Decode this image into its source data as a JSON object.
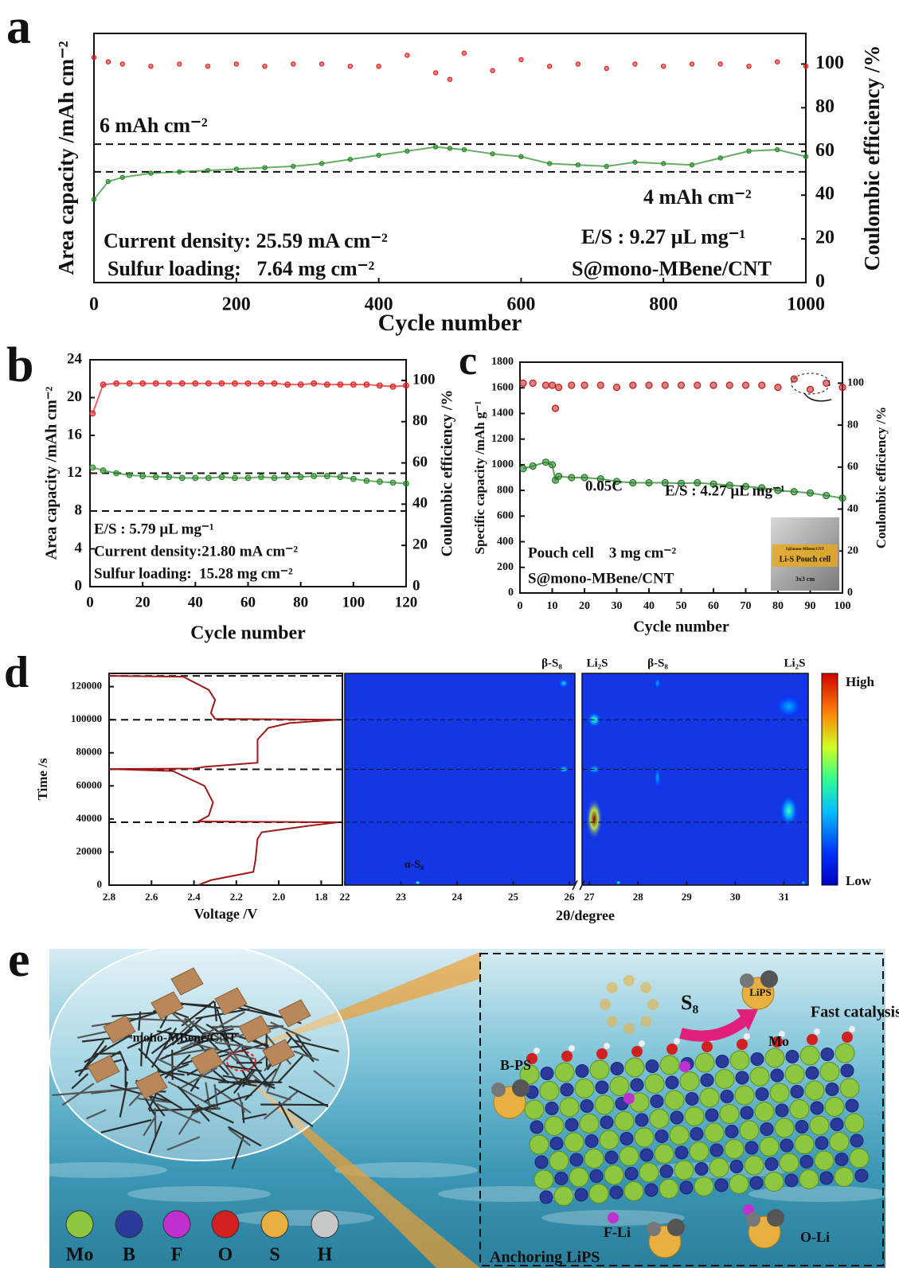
{
  "chart_data": [
    {
      "panel": "a",
      "type": "scatter",
      "xlabel": "Cycle number",
      "ylabel": "Area capacity /mAh cm⁻²",
      "y2label": "Coulombic efficiency /%",
      "x": [
        0,
        20,
        40,
        80,
        120,
        160,
        200,
        240,
        280,
        320,
        360,
        400,
        440,
        480,
        500,
        520,
        560,
        600,
        640,
        680,
        720,
        760,
        800,
        840,
        880,
        920,
        960,
        1000
      ],
      "series": [
        {
          "color": "#2a8a2a",
          "connect": true,
          "values": [
            2.0,
            3.3,
            3.6,
            3.9,
            4.0,
            4.1,
            4.2,
            4.3,
            4.4,
            4.6,
            4.9,
            5.2,
            5.5,
            5.8,
            5.7,
            5.6,
            5.3,
            5.1,
            4.6,
            4.5,
            4.4,
            4.7,
            4.6,
            4.5,
            5.0,
            5.5,
            5.6,
            5.1
          ]
        },
        {
          "color": "#e02020",
          "axis": "y2",
          "values": [
            103,
            101,
            100,
            99,
            100,
            99,
            100,
            99,
            100,
            100,
            99,
            99,
            104,
            96,
            93,
            105,
            97,
            102,
            99,
            100,
            98,
            100,
            99,
            100,
            100,
            99,
            101,
            99
          ]
        }
      ],
      "xlim": [
        0,
        1000
      ],
      "xticks": [
        0,
        200,
        400,
        600,
        800,
        1000
      ],
      "ylim": [
        -4,
        14
      ],
      "y2lim": [
        0,
        114
      ],
      "y2ticks": [
        0,
        20,
        40,
        60,
        80,
        100
      ],
      "hlines": [
        6,
        4
      ],
      "annotations": [
        "6 mAh cm⁻²",
        "4 mAh cm⁻²",
        "Current density: 25.59 mA cm⁻²",
        "Sulfur loading:   7.64 mg cm⁻²",
        "E/S : 9.27 µL mg⁻¹",
        "S@mono-MBene/CNT"
      ]
    },
    {
      "panel": "b",
      "type": "scatter",
      "xlabel": "Cycle number",
      "ylabel": "Area capacity /mAh cm⁻²",
      "y2label": "Coulombic efficiency /%",
      "x": [
        1,
        5,
        10,
        15,
        20,
        25,
        30,
        35,
        40,
        45,
        50,
        55,
        60,
        65,
        70,
        75,
        80,
        85,
        90,
        95,
        100,
        105,
        110,
        115,
        120
      ],
      "series": [
        {
          "color": "#2a8a2a",
          "connect": true,
          "values": [
            12.6,
            12.3,
            12.0,
            11.8,
            11.7,
            11.6,
            11.6,
            11.5,
            11.5,
            11.5,
            11.6,
            11.5,
            11.5,
            11.6,
            11.5,
            11.6,
            11.6,
            11.7,
            11.7,
            11.6,
            11.4,
            11.2,
            11.1,
            11.0,
            10.9
          ]
        },
        {
          "color": "#e02020",
          "axis": "y2",
          "connect": true,
          "values": [
            84,
            98,
            98.5,
            98.5,
            98.5,
            98.5,
            98.5,
            98.5,
            98.5,
            98.5,
            98.5,
            98.5,
            98.5,
            98.5,
            98.5,
            98,
            98,
            98.5,
            98,
            98,
            98,
            98,
            97.5,
            97,
            97.5
          ]
        }
      ],
      "xlim": [
        0,
        120
      ],
      "xticks": [
        0,
        20,
        40,
        60,
        80,
        100,
        120
      ],
      "ylim": [
        0,
        24
      ],
      "yticks": [
        0,
        4,
        8,
        12,
        16,
        20,
        24
      ],
      "y2lim": [
        0,
        110
      ],
      "y2ticks": [
        0,
        20,
        40,
        60,
        80,
        100
      ],
      "hlines": [
        12,
        8
      ],
      "annotations": [
        "E/S : 5.79 µL mg⁻¹",
        "Current density:21.80 mA cm⁻²",
        "Sulfur loading:  15.28 mg cm⁻²"
      ]
    },
    {
      "panel": "c",
      "type": "scatter",
      "xlabel": "Cycle number",
      "ylabel": "Specific capacity /mAh g⁻¹",
      "y2label": "Coulombic efficiency /%",
      "x": [
        1,
        4,
        8,
        10,
        11,
        12,
        16,
        20,
        25,
        30,
        35,
        40,
        45,
        50,
        55,
        60,
        65,
        70,
        75,
        80,
        85,
        90,
        95,
        100
      ],
      "series": [
        {
          "color": "#1f7a1f",
          "connect": true,
          "values": [
            970,
            990,
            1020,
            1000,
            880,
            910,
            900,
            900,
            890,
            870,
            860,
            860,
            860,
            855,
            860,
            850,
            840,
            830,
            820,
            800,
            790,
            780,
            760,
            740
          ]
        },
        {
          "color": "#c01818",
          "axis": "y2",
          "values": [
            100,
            100,
            99,
            99,
            88,
            98,
            99,
            99,
            99,
            98,
            99,
            99,
            99,
            99,
            99,
            99,
            99,
            99,
            99,
            98,
            102,
            97,
            100,
            98
          ]
        }
      ],
      "xlim": [
        0,
        100
      ],
      "xticks": [
        0,
        10,
        20,
        30,
        40,
        50,
        60,
        70,
        80,
        90,
        100
      ],
      "ylim": [
        0,
        1800
      ],
      "yticks": [
        0,
        200,
        400,
        600,
        800,
        1000,
        1200,
        1400,
        1600,
        1800
      ],
      "y2lim": [
        0,
        110
      ],
      "y2ticks": [
        0,
        20,
        40,
        60,
        80,
        100
      ],
      "annotations": [
        "0.05C",
        "E/S : 4.27 µL mg⁻¹",
        "Pouch cell    3 mg cm⁻²",
        "S@mono-MBene/CNT"
      ],
      "inset": {
        "labels": [
          "S@mono-MBene/CNT",
          "Li-S Pouch cell",
          "3x3 cm"
        ]
      }
    },
    {
      "panel": "d",
      "type": "line",
      "xlabel": "Voltage /V",
      "ylabel": "Time /s",
      "color": "#a01818",
      "x": [
        2.38,
        2.32,
        2.12,
        2.11,
        2.1,
        2.08,
        1.85,
        1.72,
        2.38,
        2.33,
        2.31,
        2.35,
        2.45,
        2.5,
        2.8,
        2.4,
        2.35,
        2.1,
        2.1,
        2.05,
        1.95,
        1.72,
        2.3,
        2.32,
        2.3,
        2.33,
        2.42,
        2.45,
        2.8
      ],
      "values": [
        0,
        3000,
        8000,
        15000,
        28000,
        32000,
        36000,
        38000,
        38500,
        42000,
        50000,
        60000,
        66000,
        69000,
        70200,
        70500,
        71500,
        74000,
        88000,
        95000,
        98000,
        100000,
        100500,
        104000,
        112000,
        118000,
        124000,
        126000,
        126500
      ],
      "xlim": [
        2.8,
        1.7
      ],
      "xticks": [
        2.8,
        2.6,
        2.4,
        2.2,
        {
          "value": 2,
          "label": "2.0"
        },
        1.8
      ],
      "ylim": [
        0,
        128000
      ],
      "yticks": [
        0,
        20000,
        40000,
        60000,
        80000,
        100000,
        120000
      ],
      "hlines": [
        126500,
        100000,
        70000,
        38000
      ]
    },
    {
      "type": "heatmap",
      "xlabel": "2θ/degree",
      "ylim": [
        0,
        128000
      ],
      "segments": [
        {
          "xlim": [
            22,
            26.1
          ],
          "xticks": [
            22,
            23,
            24,
            25,
            26
          ]
        },
        {
          "xlim": [
            26.85,
            31.5
          ],
          "xticks": [
            27,
            28,
            29,
            30,
            31
          ]
        }
      ],
      "hlines": [
        100000,
        70000,
        38000
      ],
      "peak_labels": [
        "β-S₈",
        "Li₂S",
        "β-S₈",
        "Li₂S",
        "α-S₈"
      ],
      "colorbar_labels": [
        "High",
        "Low"
      ],
      "hotspots": [
        {
          "two_theta": 27.1,
          "time": 40000,
          "intensity": 1.0,
          "width": 0.35,
          "height": 26000
        },
        {
          "two_theta": 27.1,
          "time": 100000,
          "intensity": 0.45,
          "width": 0.3,
          "height": 10000
        },
        {
          "two_theta": 27.1,
          "time": 70000,
          "intensity": 0.35,
          "width": 0.3,
          "height": 6000
        },
        {
          "two_theta": 31.1,
          "time": 45000,
          "intensity": 0.45,
          "width": 0.4,
          "height": 20000
        },
        {
          "two_theta": 31.1,
          "time": 108000,
          "intensity": 0.3,
          "width": 0.6,
          "height": 15000
        },
        {
          "two_theta": 28.4,
          "time": 65000,
          "intensity": 0.3,
          "width": 0.15,
          "height": 15000
        },
        {
          "two_theta": 28.4,
          "time": 122000,
          "intensity": 0.3,
          "width": 0.15,
          "height": 8000
        },
        {
          "two_theta": 25.9,
          "time": 70000,
          "intensity": 0.4,
          "width": 0.2,
          "height": 5000
        },
        {
          "two_theta": 25.9,
          "time": 122000,
          "intensity": 0.35,
          "width": 0.2,
          "height": 6000
        },
        {
          "two_theta": 23.3,
          "time": 1500,
          "intensity": 0.6,
          "width": 0.1,
          "height": 2500
        },
        {
          "two_theta": 27.6,
          "time": 1500,
          "intensity": 0.55,
          "width": 0.1,
          "height": 2500
        },
        {
          "two_theta": 31.4,
          "time": 1500,
          "intensity": 0.5,
          "width": 0.08,
          "height": 2500
        }
      ]
    }
  ],
  "diagram": {
    "panel": "e",
    "bubble_label": "mono-MBene/CNT",
    "labels": [
      "S₈",
      "LiPS",
      "Fast catalysis",
      "Mo",
      "B-PS",
      "F-Li",
      "O-Li",
      "Anchoring LiPS"
    ],
    "legend": [
      {
        "label": "Mo",
        "color": "#8dc63f"
      },
      {
        "label": "B",
        "color": "#2b3a9a"
      },
      {
        "label": "F",
        "color": "#c030d0"
      },
      {
        "label": "O",
        "color": "#d02020"
      },
      {
        "label": "S",
        "color": "#e8b040"
      },
      {
        "label": "H",
        "color": "#c8c8c8"
      }
    ]
  }
}
